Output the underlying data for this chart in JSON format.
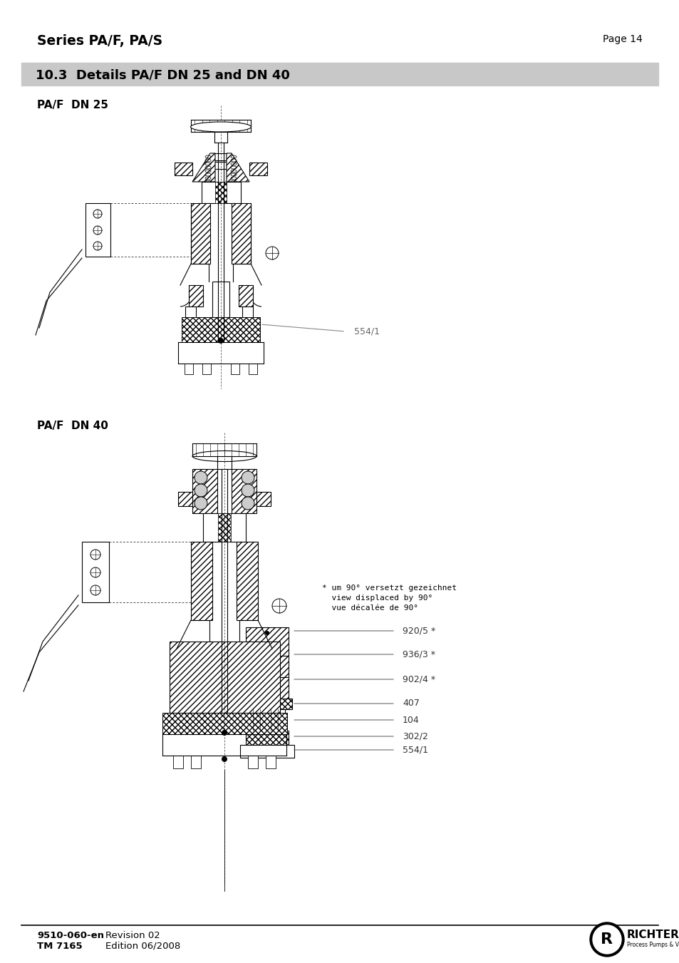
{
  "page_title": "Series PA/F, PA/S",
  "page_number": "Page 14",
  "section_title": "10.3  Details PA/F DN 25 and DN 40",
  "section_bg": "#c8c8c8",
  "subtitle1": "PA/F  DN 25",
  "subtitle2": "PA/F  DN 40",
  "label_dn25": "554/1",
  "ann_note1": "* um 90° versetzt gezeichnet",
  "ann_note2": "  view displaced by 90°",
  "ann_note3": "  vue décalée de 90°",
  "labels_dn40": [
    "920/5 *",
    "936/3 *",
    "902/4 *",
    "407",
    "104",
    "302/2",
    "554/1"
  ],
  "footer_left_bold": "9510-060-en",
  "footer_left1": "Revision 02",
  "footer_left2_bold": "TM 7165",
  "footer_left2": "Edition 06/2008",
  "bg_color": "#ffffff",
  "text_color": "#000000"
}
